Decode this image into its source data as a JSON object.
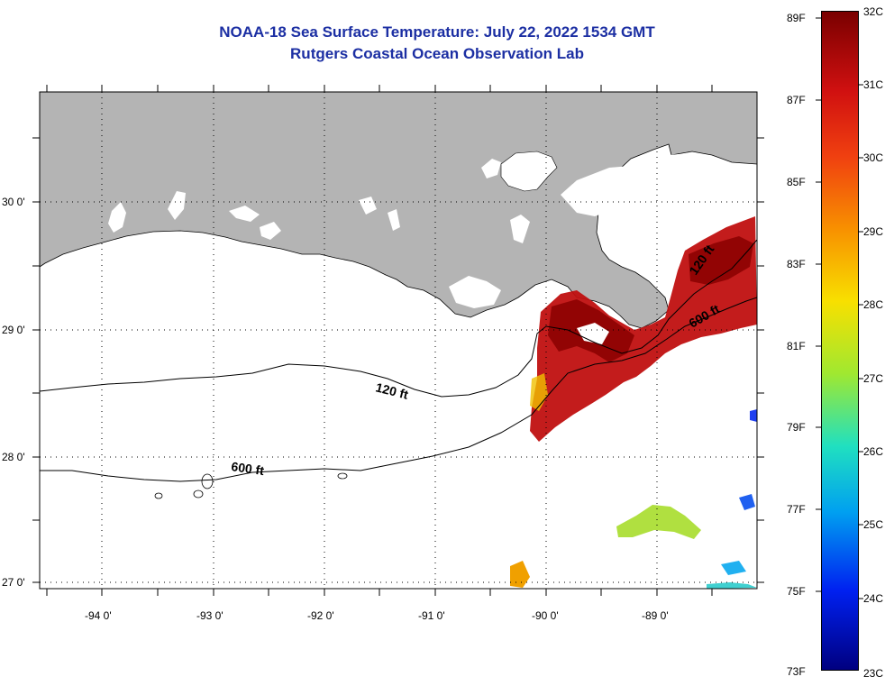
{
  "title": "NOAA-18 Sea Surface Temperature:  July 22, 2022 1534 GMT",
  "subtitle": "Rutgers Coastal Ocean Observation Lab",
  "lat_labels": [
    "30 0'",
    "29 0'",
    "28 0'",
    "27 0'"
  ],
  "lon_labels": [
    "-94 0'",
    "-93 0'",
    "-92 0'",
    "-91 0'",
    "-90 0'",
    "-89 0'"
  ],
  "contours": [
    {
      "label": "120 ft",
      "depth_ft": 120
    },
    {
      "label": "600 ft",
      "depth_ft": 600
    }
  ],
  "colorbar": {
    "fahrenheit": [
      "89F",
      "87F",
      "85F",
      "83F",
      "81F",
      "79F",
      "77F",
      "75F",
      "73F"
    ],
    "celsius": [
      "32C",
      "31C",
      "30C",
      "29C",
      "28C",
      "27C",
      "26C",
      "25C",
      "24C",
      "23C"
    ],
    "min_c": 23,
    "max_c": 32
  },
  "colors": {
    "land": "#b4b4b4",
    "water": "#ffffff",
    "title": "#1c2fa3",
    "warm": "#c81010"
  }
}
